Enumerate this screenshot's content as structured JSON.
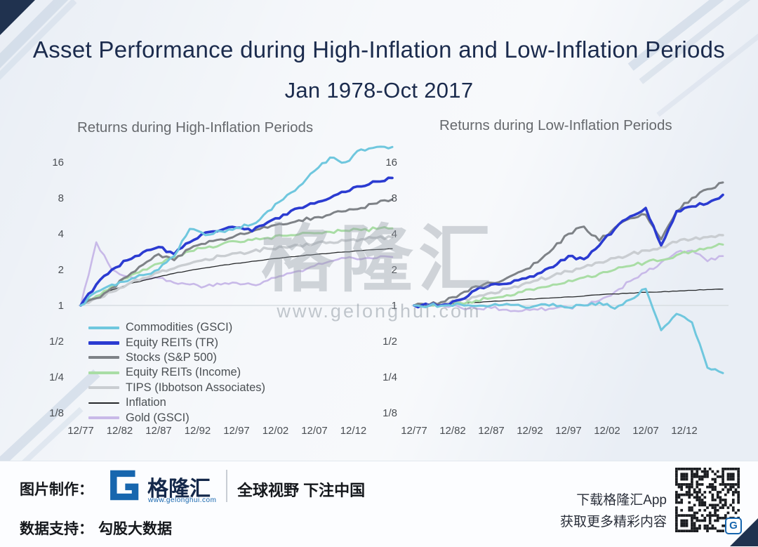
{
  "header": {
    "title_line1": "Asset Performance during High-Inflation and Low-Inflation Periods",
    "title_line2": "Jan 1978-Oct 2017"
  },
  "watermark": {
    "brand": "格隆汇",
    "url": "www.gelonghui.com"
  },
  "footer": {
    "made_by_label": "图片制作：",
    "brand_name": "格隆汇",
    "brand_url": "www.gelonghui.com",
    "slogan": "全球视野 下注中国",
    "data_support_label": "数据支持：",
    "data_support_value": "勾股大数据",
    "app_cta_line1": "下载格隆汇App",
    "app_cta_line2": "获取更多精彩内容",
    "qr_badge": "G",
    "brand_color": "#1766ae"
  },
  "chart_data": [
    {
      "type": "line",
      "title": "Returns during High-Inflation Periods",
      "y_scale": "log2",
      "ylim": [
        0.125,
        24
      ],
      "x_unit": "years since Dec 1977",
      "x": [
        0,
        2,
        4,
        6,
        8,
        10,
        12,
        14,
        16,
        18,
        20,
        22,
        24,
        26,
        28,
        30,
        32,
        34,
        36,
        38,
        40
      ],
      "x_ticks": [
        {
          "label": "12/77",
          "year": 0
        },
        {
          "label": "12/82",
          "year": 5
        },
        {
          "label": "12/87",
          "year": 10
        },
        {
          "label": "12/92",
          "year": 15
        },
        {
          "label": "12/97",
          "year": 20
        },
        {
          "label": "12/02",
          "year": 25
        },
        {
          "label": "12/07",
          "year": 30
        },
        {
          "label": "12/12",
          "year": 35
        }
      ],
      "y_ticks": [
        {
          "label": "16",
          "value": 16
        },
        {
          "label": "8",
          "value": 8
        },
        {
          "label": "4",
          "value": 4
        },
        {
          "label": "2",
          "value": 2
        },
        {
          "label": "1",
          "value": 1
        },
        {
          "label": "1/2",
          "value": 0.5
        },
        {
          "label": "1/4",
          "value": 0.25
        },
        {
          "label": "1/8",
          "value": 0.125
        }
      ],
      "series": [
        {
          "name": "Commodities (GSCI)",
          "color": "#6fc7de",
          "width": 3,
          "values": [
            1,
            1.3,
            1.5,
            1.6,
            1.8,
            2.0,
            2.6,
            4.4,
            3.9,
            4.2,
            4.5,
            4.8,
            6.2,
            7.8,
            10,
            13.5,
            17.5,
            16,
            20.5,
            21.5,
            21.5
          ]
        },
        {
          "name": "Equity REITs (TR)",
          "color": "#2b3bd1",
          "width": 3.6,
          "values": [
            1,
            1.5,
            2.0,
            2.4,
            2.8,
            3.1,
            2.7,
            3.4,
            4.1,
            4.3,
            4.5,
            4.2,
            5.0,
            5.8,
            6.6,
            7.2,
            8.0,
            9.0,
            10.0,
            11.0,
            11.8
          ]
        },
        {
          "name": "Stocks (S&P 500)",
          "color": "#7e8287",
          "width": 3,
          "values": [
            1,
            1.15,
            1.4,
            1.75,
            2.2,
            2.7,
            2.4,
            3.0,
            3.3,
            3.6,
            3.9,
            4.2,
            4.5,
            4.8,
            5.2,
            5.5,
            5.8,
            6.2,
            6.6,
            7.2,
            7.8
          ]
        },
        {
          "name": "Equity REITs (Income)",
          "color": "#a9dda5",
          "width": 3,
          "values": [
            1,
            1.2,
            1.45,
            1.7,
            2.0,
            2.25,
            2.5,
            2.85,
            3.05,
            3.25,
            3.45,
            3.55,
            3.7,
            3.85,
            3.95,
            4.05,
            4.15,
            4.25,
            4.3,
            4.4,
            4.45
          ]
        },
        {
          "name": "TIPS (Ibbotson Associates)",
          "color": "#c9cdd1",
          "width": 3.4,
          "values": [
            1,
            1.15,
            1.3,
            1.5,
            1.7,
            1.9,
            2.05,
            2.25,
            2.45,
            2.6,
            2.75,
            2.85,
            3.0,
            3.1,
            3.2,
            3.3,
            3.4,
            3.5,
            3.6,
            3.7,
            3.75
          ]
        },
        {
          "name": "Inflation",
          "color": "#26282a",
          "width": 1.3,
          "values": [
            1,
            1.2,
            1.35,
            1.5,
            1.62,
            1.74,
            1.86,
            1.97,
            2.07,
            2.17,
            2.26,
            2.35,
            2.44,
            2.52,
            2.6,
            2.68,
            2.75,
            2.82,
            2.89,
            2.95,
            3.0
          ]
        },
        {
          "name": "Gold (GSCI)",
          "color": "#c8b9e8",
          "width": 2.6,
          "values": [
            1,
            3.4,
            2.0,
            1.75,
            1.65,
            1.7,
            1.55,
            1.5,
            1.45,
            1.5,
            1.55,
            1.5,
            1.62,
            1.78,
            1.95,
            2.15,
            2.35,
            2.5,
            2.45,
            2.5,
            2.55
          ]
        }
      ]
    },
    {
      "type": "line",
      "title": "Returns during Low-Inflation Periods",
      "y_scale": "log2",
      "ylim": [
        0.125,
        24
      ],
      "x_unit": "years since Dec 1977",
      "x": [
        0,
        2,
        4,
        6,
        8,
        10,
        12,
        14,
        16,
        18,
        20,
        22,
        24,
        26,
        28,
        30,
        32,
        34,
        36,
        38,
        40
      ],
      "x_ticks": [
        {
          "label": "12/77",
          "year": 0
        },
        {
          "label": "12/82",
          "year": 5
        },
        {
          "label": "12/87",
          "year": 10
        },
        {
          "label": "12/92",
          "year": 15
        },
        {
          "label": "12/97",
          "year": 20
        },
        {
          "label": "12/02",
          "year": 25
        },
        {
          "label": "12/07",
          "year": 30
        },
        {
          "label": "12/12",
          "year": 35
        }
      ],
      "y_ticks": [
        {
          "label": "16",
          "value": 16
        },
        {
          "label": "8",
          "value": 8
        },
        {
          "label": "4",
          "value": 4
        },
        {
          "label": "2",
          "value": 2
        },
        {
          "label": "1",
          "value": 1
        },
        {
          "label": "1/2",
          "value": 0.5
        },
        {
          "label": "1/4",
          "value": 0.25
        },
        {
          "label": "1/8",
          "value": 0.125
        }
      ],
      "series": [
        {
          "name": "Commodities (GSCI)",
          "color": "#6fc7de",
          "width": 3,
          "values": [
            1,
            1,
            1,
            1.02,
            0.99,
            1.0,
            1.03,
            0.98,
            1.0,
            1.03,
            0.96,
            1.0,
            1.06,
            0.94,
            1.12,
            1.38,
            0.62,
            0.85,
            0.72,
            0.3,
            0.27
          ]
        },
        {
          "name": "Equity REITs (TR)",
          "color": "#2b3bd1",
          "width": 3.6,
          "values": [
            1,
            1,
            1.02,
            1.12,
            1.35,
            1.5,
            1.52,
            1.68,
            1.85,
            2.1,
            2.6,
            2.45,
            3.2,
            4.4,
            5.6,
            6.6,
            3.2,
            6.2,
            6.8,
            7.2,
            8.5
          ]
        },
        {
          "name": "Stocks (S&P 500)",
          "color": "#7e8287",
          "width": 3,
          "values": [
            1,
            1.02,
            1.08,
            1.25,
            1.45,
            1.55,
            1.7,
            1.95,
            2.3,
            3.0,
            4.0,
            4.6,
            3.5,
            4.5,
            5.4,
            5.8,
            3.6,
            6.2,
            8.0,
            9.5,
            10.8
          ]
        },
        {
          "name": "Equity REITs (Income)",
          "color": "#a9dda5",
          "width": 3,
          "values": [
            1,
            1,
            1.02,
            1.05,
            1.1,
            1.15,
            1.22,
            1.3,
            1.4,
            1.5,
            1.62,
            1.72,
            1.85,
            2.0,
            2.15,
            2.3,
            2.4,
            2.65,
            2.85,
            3.05,
            3.25
          ]
        },
        {
          "name": "TIPS (Ibbotson Associates)",
          "color": "#c9cdd1",
          "width": 3.4,
          "values": [
            1,
            1,
            1.04,
            1.1,
            1.18,
            1.28,
            1.38,
            1.5,
            1.63,
            1.78,
            1.93,
            2.1,
            2.3,
            2.5,
            2.7,
            2.9,
            3.1,
            3.4,
            3.6,
            3.75,
            3.9
          ]
        },
        {
          "name": "Inflation",
          "color": "#26282a",
          "width": 1.3,
          "values": [
            1,
            1,
            1.02,
            1.04,
            1.06,
            1.08,
            1.1,
            1.12,
            1.14,
            1.16,
            1.18,
            1.2,
            1.23,
            1.25,
            1.27,
            1.29,
            1.3,
            1.32,
            1.34,
            1.36,
            1.37
          ]
        },
        {
          "name": "Gold (GSCI)",
          "color": "#c8b9e8",
          "width": 2.6,
          "values": [
            1,
            1,
            0.98,
            0.96,
            0.94,
            0.95,
            0.92,
            0.9,
            0.92,
            0.94,
            0.96,
            1.0,
            1.1,
            1.3,
            1.6,
            1.9,
            2.3,
            2.8,
            2.9,
            2.35,
            2.6
          ]
        }
      ]
    }
  ]
}
